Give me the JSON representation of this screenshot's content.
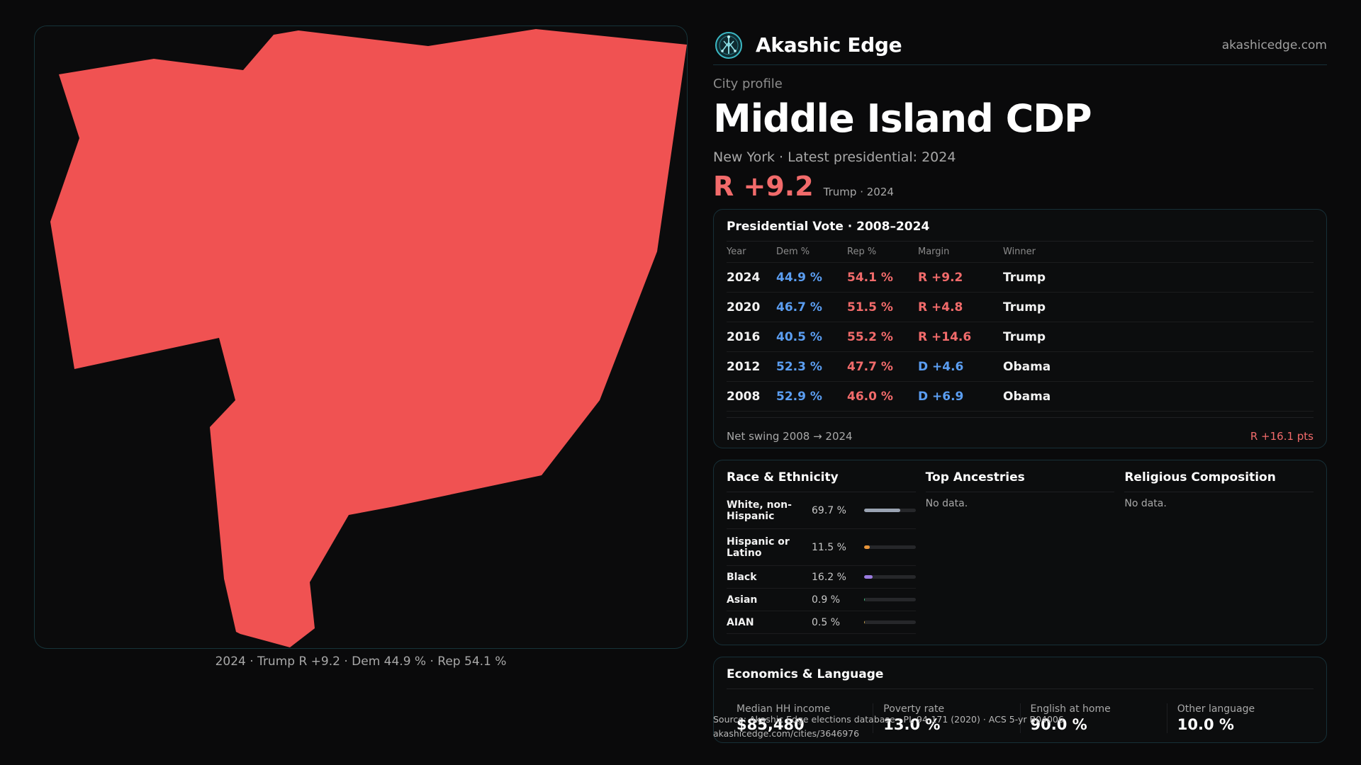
{
  "map": {
    "fill_color": "#f05252",
    "caption": "2024 · Trump R +9.2 · Dem 44.9 % · Rep 54.1 %"
  },
  "brand": {
    "name": "Akashic Edge",
    "domain": "akashicedge.com",
    "logo_icon": "tree-network-icon"
  },
  "profile": {
    "eyebrow": "City profile",
    "title": "Middle Island CDP",
    "subline": "New York  · Latest presidential: 2024",
    "margin": "R +9.2",
    "margin_note": "Trump · 2024"
  },
  "votes": {
    "title": "Presidential Vote · 2008–2024",
    "headers": [
      "Year",
      "Dem %",
      "Rep %",
      "Margin",
      "Winner"
    ],
    "rows": [
      {
        "year": "2024",
        "dem": "44.9 %",
        "rep": "54.1 %",
        "margin": "R +9.2",
        "party": "rep",
        "winner": "Trump"
      },
      {
        "year": "2020",
        "dem": "46.7 %",
        "rep": "51.5 %",
        "margin": "R +4.8",
        "party": "rep",
        "winner": "Trump"
      },
      {
        "year": "2016",
        "dem": "40.5 %",
        "rep": "55.2 %",
        "margin": "R +14.6",
        "party": "rep",
        "winner": "Trump"
      },
      {
        "year": "2012",
        "dem": "52.3 %",
        "rep": "47.7 %",
        "margin": "D +4.6",
        "party": "dem",
        "winner": "Obama"
      },
      {
        "year": "2008",
        "dem": "52.9 %",
        "rep": "46.0 %",
        "margin": "D +6.9",
        "party": "dem",
        "winner": "Obama"
      }
    ],
    "swing_label": "Net swing 2008 → 2024",
    "swing_value": "R +16.1 pts"
  },
  "race": {
    "title": "Race & Ethnicity",
    "rows": [
      {
        "label": "White, non-Hispanic",
        "pct": "69.7 %",
        "fraction": 0.697,
        "color": "#9aa3b2"
      },
      {
        "label": "Hispanic or Latino",
        "pct": "11.5 %",
        "fraction": 0.115,
        "color": "#e8953a"
      },
      {
        "label": "Black",
        "pct": "16.2 %",
        "fraction": 0.162,
        "color": "#9b7be0"
      },
      {
        "label": "Asian",
        "pct": "0.9 %",
        "fraction": 0.009,
        "color": "#3fbf7f"
      },
      {
        "label": "AIAN",
        "pct": "0.5 %",
        "fraction": 0.005,
        "color": "#c9a14a"
      }
    ]
  },
  "ancestries": {
    "title": "Top Ancestries",
    "empty": "No data."
  },
  "religion": {
    "title": "Religious Composition",
    "empty": "No data."
  },
  "economics": {
    "title": "Economics & Language",
    "items": [
      {
        "label": "Median HH income",
        "value": "$85,480"
      },
      {
        "label": "Poverty rate",
        "value": "13.0 %"
      },
      {
        "label": "English at home",
        "value": "90.0 %"
      },
      {
        "label": "Other language",
        "value": "10.0 %"
      }
    ]
  },
  "source": {
    "line1": "Source: Akashic Edge elections database · PL 94-171 (2020) · ACS 5-yr B04006",
    "line2": "akashicedge.com/cities/3646976"
  }
}
